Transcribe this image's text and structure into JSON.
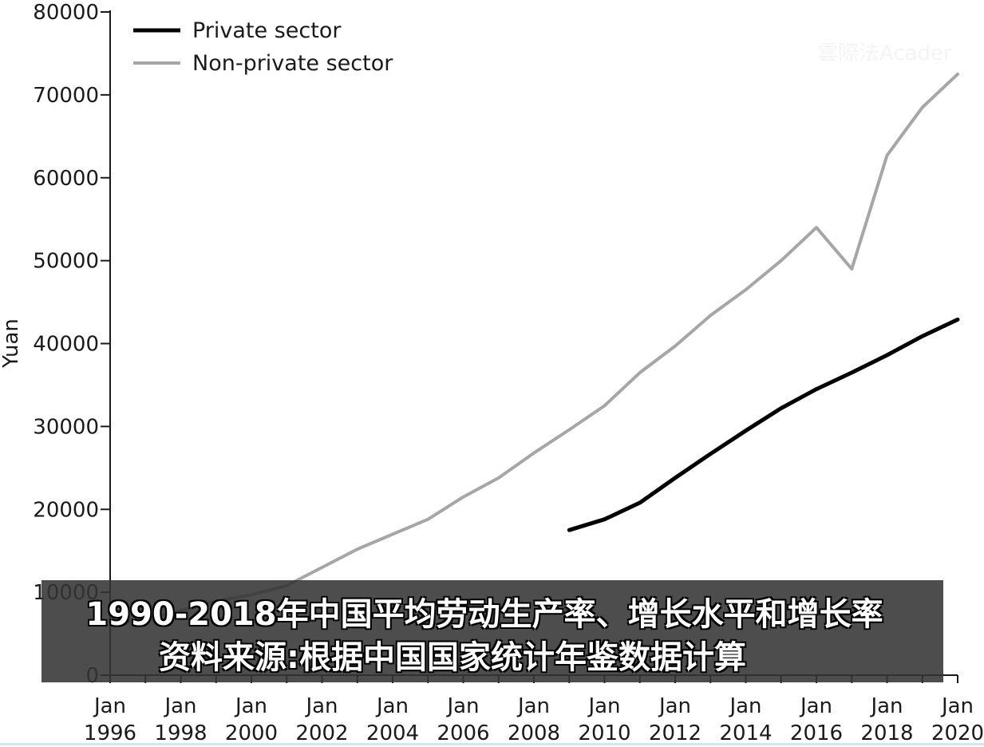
{
  "watermark": "雲際法Acader",
  "caption": {
    "line1": "1990-2018年中国平均劳动生产率、增长水平和增长率",
    "line2": "资料来源:根据中国国家统计年鉴数据计算"
  },
  "chart_data": {
    "type": "line",
    "title": "",
    "xlabel": "",
    "ylabel": "Yuan",
    "ylim": [
      0,
      80000
    ],
    "yticks": [
      0,
      10000,
      20000,
      30000,
      40000,
      50000,
      60000,
      70000,
      80000
    ],
    "xlim": [
      1996,
      2020
    ],
    "xticks": [
      {
        "value": 1996,
        "line1": "Jan",
        "line2": "1996"
      },
      {
        "value": 1998,
        "line1": "Jan",
        "line2": "1998"
      },
      {
        "value": 2000,
        "line1": "Jan",
        "line2": "2000"
      },
      {
        "value": 2002,
        "line1": "Jan",
        "line2": "2002"
      },
      {
        "value": 2004,
        "line1": "Jan",
        "line2": "2004"
      },
      {
        "value": 2006,
        "line1": "Jan",
        "line2": "2006"
      },
      {
        "value": 2008,
        "line1": "Jan",
        "line2": "2008"
      },
      {
        "value": 2010,
        "line1": "Jan",
        "line2": "2010"
      },
      {
        "value": 2012,
        "line1": "Jan",
        "line2": "2012"
      },
      {
        "value": 2014,
        "line1": "Jan",
        "line2": "2014"
      },
      {
        "value": 2016,
        "line1": "Jan",
        "line2": "2016"
      },
      {
        "value": 2018,
        "line1": "Jan",
        "line2": "2018"
      },
      {
        "value": 2020,
        "line1": "Jan",
        "line2": "2020"
      }
    ],
    "legend_position": "top-left",
    "grid": false,
    "series": [
      {
        "name": "Private sector",
        "color": "#000000",
        "x": [
          2009,
          2010,
          2011,
          2012,
          2013,
          2014,
          2015,
          2016,
          2017,
          2018,
          2019,
          2020
        ],
        "y": [
          17500,
          18800,
          20800,
          23800,
          26700,
          29500,
          32200,
          34500,
          36500,
          38600,
          40900,
          42900
        ]
      },
      {
        "name": "Non-private sector",
        "color": "#a6a6a6",
        "x": [
          1996,
          1997,
          1998,
          1999,
          2000,
          2001,
          2002,
          2003,
          2004,
          2005,
          2006,
          2007,
          2008,
          2009,
          2010,
          2011,
          2012,
          2013,
          2014,
          2015,
          2016,
          2017,
          2018,
          2019,
          2020
        ],
        "y": [
          6000,
          6800,
          7800,
          8900,
          9700,
          10800,
          13000,
          15200,
          17000,
          18800,
          21500,
          23800,
          26800,
          29600,
          32500,
          36500,
          39700,
          43400,
          46500,
          50000,
          54000,
          49000,
          62700,
          68500,
          72500
        ]
      }
    ]
  }
}
